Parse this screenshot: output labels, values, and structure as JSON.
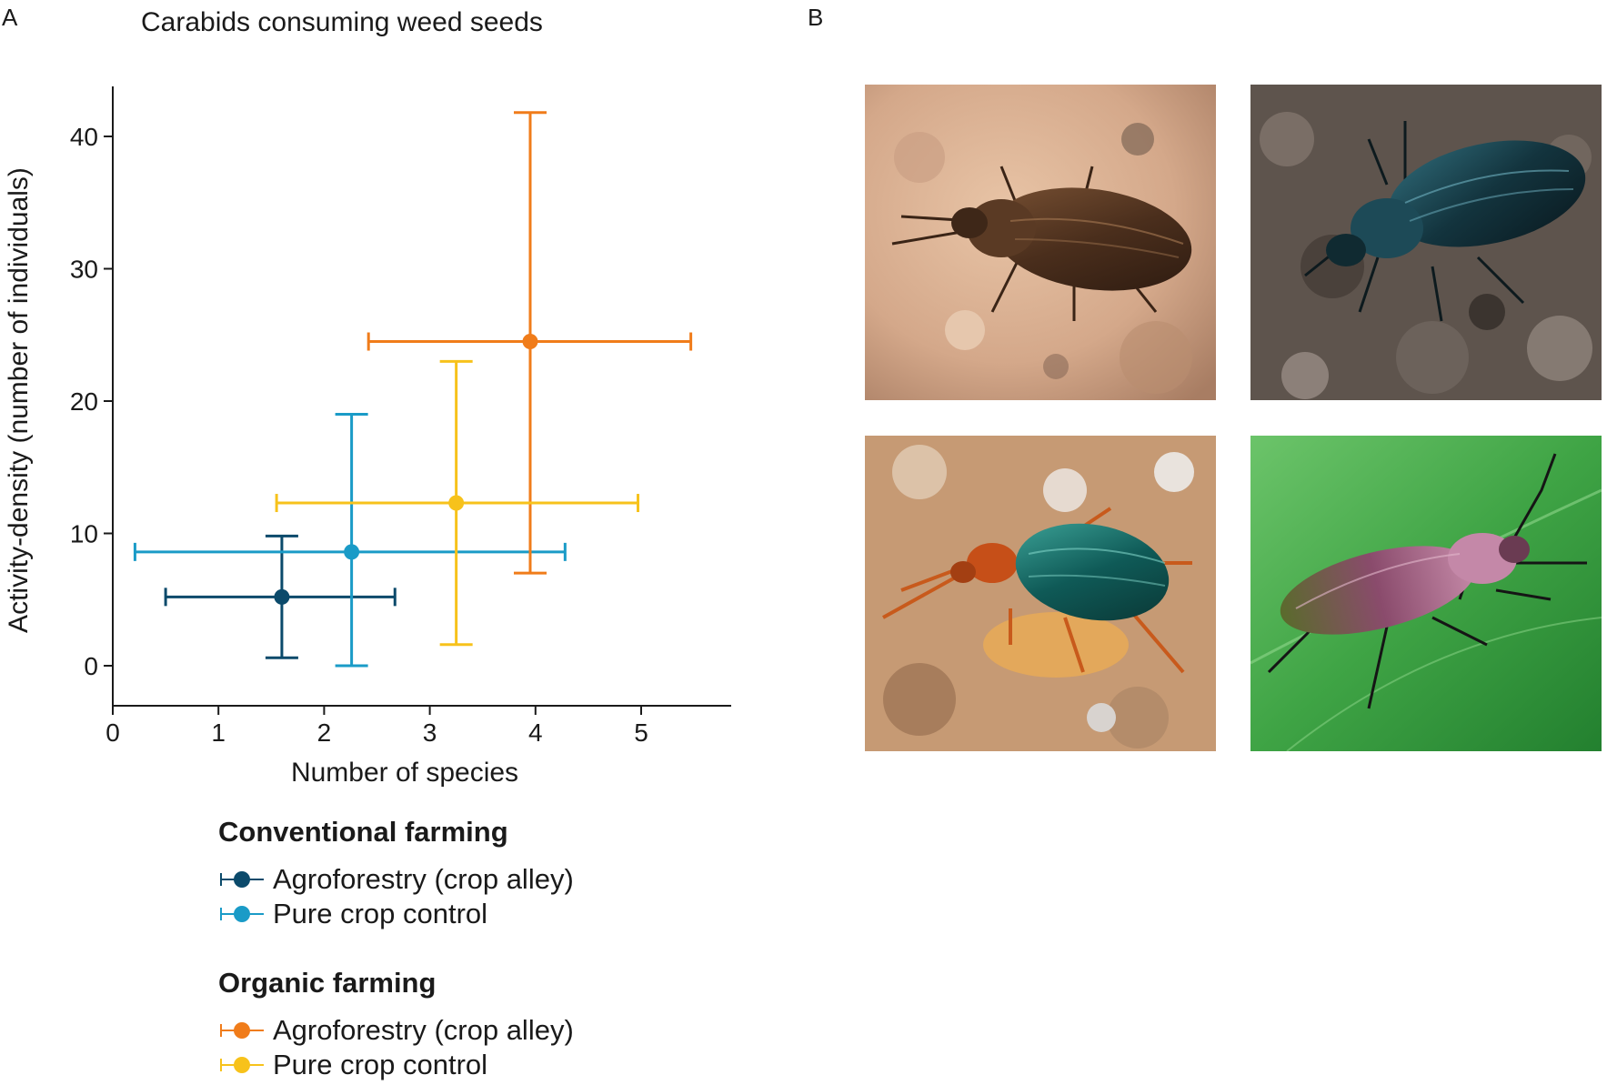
{
  "panels": {
    "a_label": "A",
    "b_label": "B"
  },
  "chart_data": {
    "type": "scatter",
    "title": "Carabids consuming weed seeds",
    "xlabel": "Number of species",
    "ylabel": "Activity-density (number of individuals)",
    "xlim": [
      0,
      5.7
    ],
    "ylim": [
      -2,
      44
    ],
    "xticks": [
      0,
      1,
      2,
      3,
      4,
      5
    ],
    "yticks": [
      0,
      10,
      20,
      30,
      40
    ],
    "grid": false,
    "legend_placement": "below",
    "legend_groups": [
      {
        "heading": "Conventional farming",
        "series_indices": [
          0,
          1
        ]
      },
      {
        "heading": "Organic farming",
        "series_indices": [
          2,
          3
        ]
      }
    ],
    "series": [
      {
        "name": "Agroforestry (crop alley)",
        "group": "Conventional farming",
        "color": "#0b4a6b",
        "x": 1.6,
        "y": 5.2,
        "x_err": [
          0.5,
          2.67
        ],
        "y_err": [
          0.6,
          9.8
        ]
      },
      {
        "name": "Pure crop control",
        "group": "Conventional farming",
        "color": "#1a9bc7",
        "x": 2.26,
        "y": 8.6,
        "x_err": [
          0.21,
          4.28
        ],
        "y_err": [
          0.0,
          19.0
        ]
      },
      {
        "name": "Agroforestry (crop alley)",
        "group": "Organic farming",
        "color": "#f07c1a",
        "x": 3.95,
        "y": 24.5,
        "x_err": [
          2.42,
          5.47
        ],
        "y_err": [
          7.0,
          41.8
        ]
      },
      {
        "name": "Pure crop control",
        "group": "Organic farming",
        "color": "#f7c21b",
        "x": 3.25,
        "y": 12.3,
        "x_err": [
          1.55,
          4.97
        ],
        "y_err": [
          1.6,
          23.0
        ]
      }
    ]
  },
  "photos": [
    {
      "name": "bronze-beetle-on-rock"
    },
    {
      "name": "blue-black-beetle-on-soil"
    },
    {
      "name": "green-beetle-with-seed"
    },
    {
      "name": "purple-green-beetle-on-leaf"
    }
  ]
}
